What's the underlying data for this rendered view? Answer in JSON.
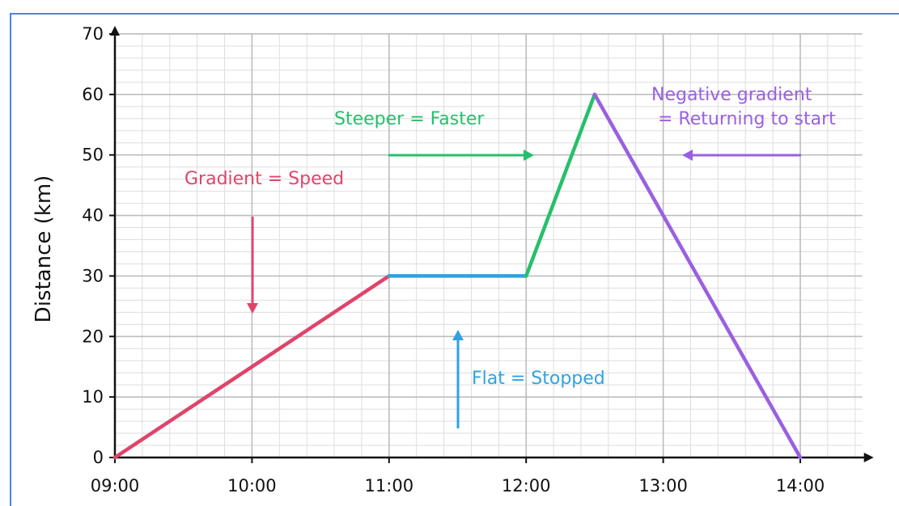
{
  "chart_data": {
    "type": "line",
    "title": "",
    "xlabel": "",
    "ylabel": "Distance (km)",
    "x_ticks": [
      "09:00",
      "10:00",
      "11:00",
      "12:00",
      "13:00",
      "14:00"
    ],
    "y_ticks": [
      "0",
      "10",
      "20",
      "30",
      "40",
      "50",
      "60",
      "70"
    ],
    "xlim": [
      "09:00",
      "14:30"
    ],
    "ylim": [
      0,
      70
    ],
    "grid": true,
    "legend": "none",
    "series": [
      {
        "color": "#e0446a",
        "x": [
          "09:00",
          "11:00"
        ],
        "y": [
          0,
          30
        ]
      },
      {
        "color": "#2ea3e0",
        "x": [
          "11:00",
          "12:00"
        ],
        "y": [
          30,
          30
        ]
      },
      {
        "color": "#26c06a",
        "x": [
          "12:00",
          "12:30"
        ],
        "y": [
          30,
          60
        ]
      },
      {
        "color": "#9a60e0",
        "x": [
          "12:30",
          "14:00"
        ],
        "y": [
          60,
          0
        ]
      }
    ],
    "annotations": [
      {
        "text": "Gradient = Speed",
        "color": "#e0446a"
      },
      {
        "text": "Steeper = Faster",
        "color": "#26c06a"
      },
      {
        "text": "Flat = Stopped",
        "color": "#2ea3e0"
      },
      {
        "text": "Negative gradient",
        "color": "#9a60e0"
      },
      {
        "text": "= Returning to start",
        "color": "#9a60e0"
      }
    ]
  }
}
